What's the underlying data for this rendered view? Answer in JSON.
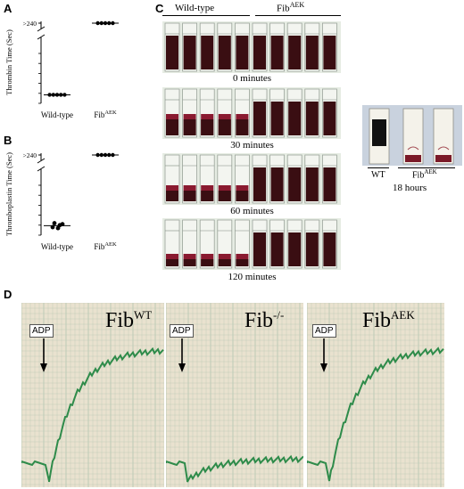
{
  "panels": {
    "A": "A",
    "B": "B",
    "C": "C",
    "D": "D"
  },
  "chart_data": [
    {
      "type": "scatter",
      "panel": "A",
      "ylabel": "Thrombin Time (Sec)",
      "y_break_label": ">240",
      "y_ticks": [
        0,
        20,
        40,
        60,
        80,
        100
      ],
      "ylim": [
        0,
        100
      ],
      "categories": [
        "Wild-type",
        "Fib^AEK"
      ],
      "category_labels": [
        {
          "base": "Wild-type",
          "sup": ""
        },
        {
          "base": "Fib",
          "sup": "AEK"
        }
      ],
      "series": [
        {
          "values": [
            [
              17,
              17,
              17,
              17,
              17
            ],
            [
              ">240",
              ">240",
              ">240",
              ">240",
              ">240"
            ]
          ],
          "means": [
            17,
            ">240"
          ]
        }
      ]
    },
    {
      "type": "scatter",
      "panel": "B",
      "ylabel": "Thromboplastin Time (Sec)",
      "y_break_label": ">240",
      "y_ticks": [
        0,
        20,
        40,
        60,
        80,
        100
      ],
      "ylim": [
        0,
        100
      ],
      "categories": [
        "Wild-type",
        "Fib^AEK"
      ],
      "category_labels": [
        {
          "base": "Wild-type",
          "sup": ""
        },
        {
          "base": "Fib",
          "sup": "AEK"
        }
      ],
      "series": [
        {
          "values": [
            [
              24,
              20,
              16,
              14,
              22
            ],
            [
              ">240",
              ">240",
              ">240",
              ">240",
              ">240"
            ]
          ],
          "means": [
            19,
            ">240"
          ]
        }
      ]
    }
  ],
  "panel_c": {
    "header_left": "Wild-type",
    "header_right_base": "Fib",
    "header_right_sup": "AEK",
    "time_labels": [
      "0 minutes",
      "30 minutes",
      "60 minutes",
      "120 minutes"
    ],
    "inset_labels": {
      "wt": "WT",
      "aek_base": "Fib",
      "aek_sup": "AEK",
      "time": "18 hours"
    }
  },
  "panel_d": {
    "traces": [
      {
        "label_base": "Fib",
        "label_sup": "WT",
        "arrow_label": "ADP",
        "aggregation": 0.8
      },
      {
        "label_base": "Fib",
        "label_sup": "-/-",
        "arrow_label": "ADP",
        "aggregation": 0.03
      },
      {
        "label_base": "Fib",
        "label_sup": "AEK",
        "arrow_label": "ADP",
        "aggregation": 0.8
      }
    ]
  },
  "colors": {
    "trace": "#2e8b4a",
    "paper": "#e9e2cf",
    "grid": "#b9c9b4",
    "blood": "#3a0e12",
    "clot": "#8a1a30"
  }
}
